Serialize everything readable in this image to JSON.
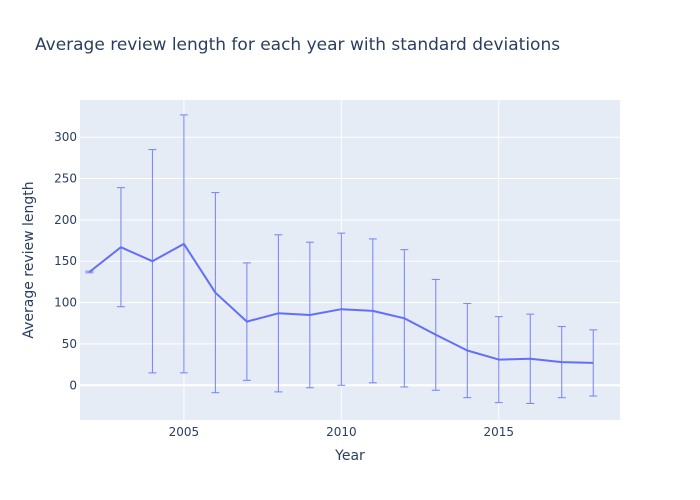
{
  "chart_data": {
    "type": "line",
    "title": "Average review length for each year with standard deviations",
    "xlabel": "Year",
    "ylabel": "Average review length",
    "xlim": [
      2001.7,
      2018.85
    ],
    "ylim": [
      -42,
      345
    ],
    "x_ticks": [
      2005,
      2010,
      2015
    ],
    "y_ticks": [
      0,
      50,
      100,
      150,
      200,
      250,
      300
    ],
    "grid": true,
    "legend": "none",
    "colors": {
      "line": "#636efa",
      "plot_bg": "#e5ecf6",
      "grid": "#ffffff",
      "text": "#2a3f5f"
    },
    "series": [
      {
        "x": [
          2002,
          2003,
          2004,
          2005,
          2006,
          2007,
          2008,
          2009,
          2010,
          2011,
          2012,
          2013,
          2014,
          2015,
          2016,
          2017,
          2018
        ],
        "values": [
          137,
          167,
          150,
          171,
          112,
          77,
          87,
          85,
          92,
          90,
          81,
          61,
          42,
          31,
          32,
          28,
          27
        ],
        "error": [
          1,
          72,
          135,
          156,
          121,
          71,
          95,
          88,
          92,
          87,
          83,
          67,
          57,
          52,
          54,
          43,
          40
        ]
      }
    ]
  }
}
